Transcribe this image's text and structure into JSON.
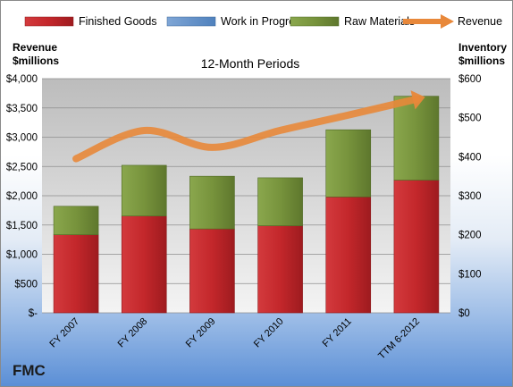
{
  "company": "FMC",
  "colors": {
    "finished_goods": "#c3272b",
    "work_in_progress": "#4f81bd",
    "raw_materials": "#77933c",
    "revenue": "#e8883a"
  },
  "chart_data": {
    "type": "bar",
    "stacked": true,
    "title": "12-Month Periods",
    "left_axis_title": [
      "Revenue",
      "$millions"
    ],
    "right_axis_title": [
      "Inventory",
      "$millions"
    ],
    "categories": [
      "FY 2007",
      "FY 2008",
      "FY 2009",
      "FY 2010",
      "FY 2011",
      "TTM 6-2012"
    ],
    "series": [
      {
        "name": "Finished Goods",
        "axis": "right",
        "kind": "bar",
        "values": [
          200,
          248,
          215,
          223,
          297,
          340
        ]
      },
      {
        "name": "Work in Progress",
        "axis": "right",
        "kind": "bar",
        "values": [
          0,
          0,
          0,
          0,
          0,
          0
        ]
      },
      {
        "name": "Raw Materials",
        "axis": "right",
        "kind": "bar",
        "values": [
          73,
          130,
          135,
          123,
          172,
          215
        ]
      },
      {
        "name": "Revenue",
        "axis": "left",
        "kind": "line",
        "values": [
          2633,
          3115,
          2826,
          3116,
          3378,
          3650
        ]
      }
    ],
    "left_axis": {
      "min": 0,
      "max": 4000,
      "step": 500,
      "tick_labels": [
        "$-",
        "$500",
        "$1,000",
        "$1,500",
        "$2,000",
        "$2,500",
        "$3,000",
        "$3,500",
        "$4,000"
      ]
    },
    "right_axis": {
      "min": 0,
      "max": 600,
      "step": 100,
      "tick_labels": [
        "$0",
        "$100",
        "$200",
        "$300",
        "$400",
        "$500",
        "$600"
      ]
    },
    "grid": true,
    "legend_position": "top"
  }
}
